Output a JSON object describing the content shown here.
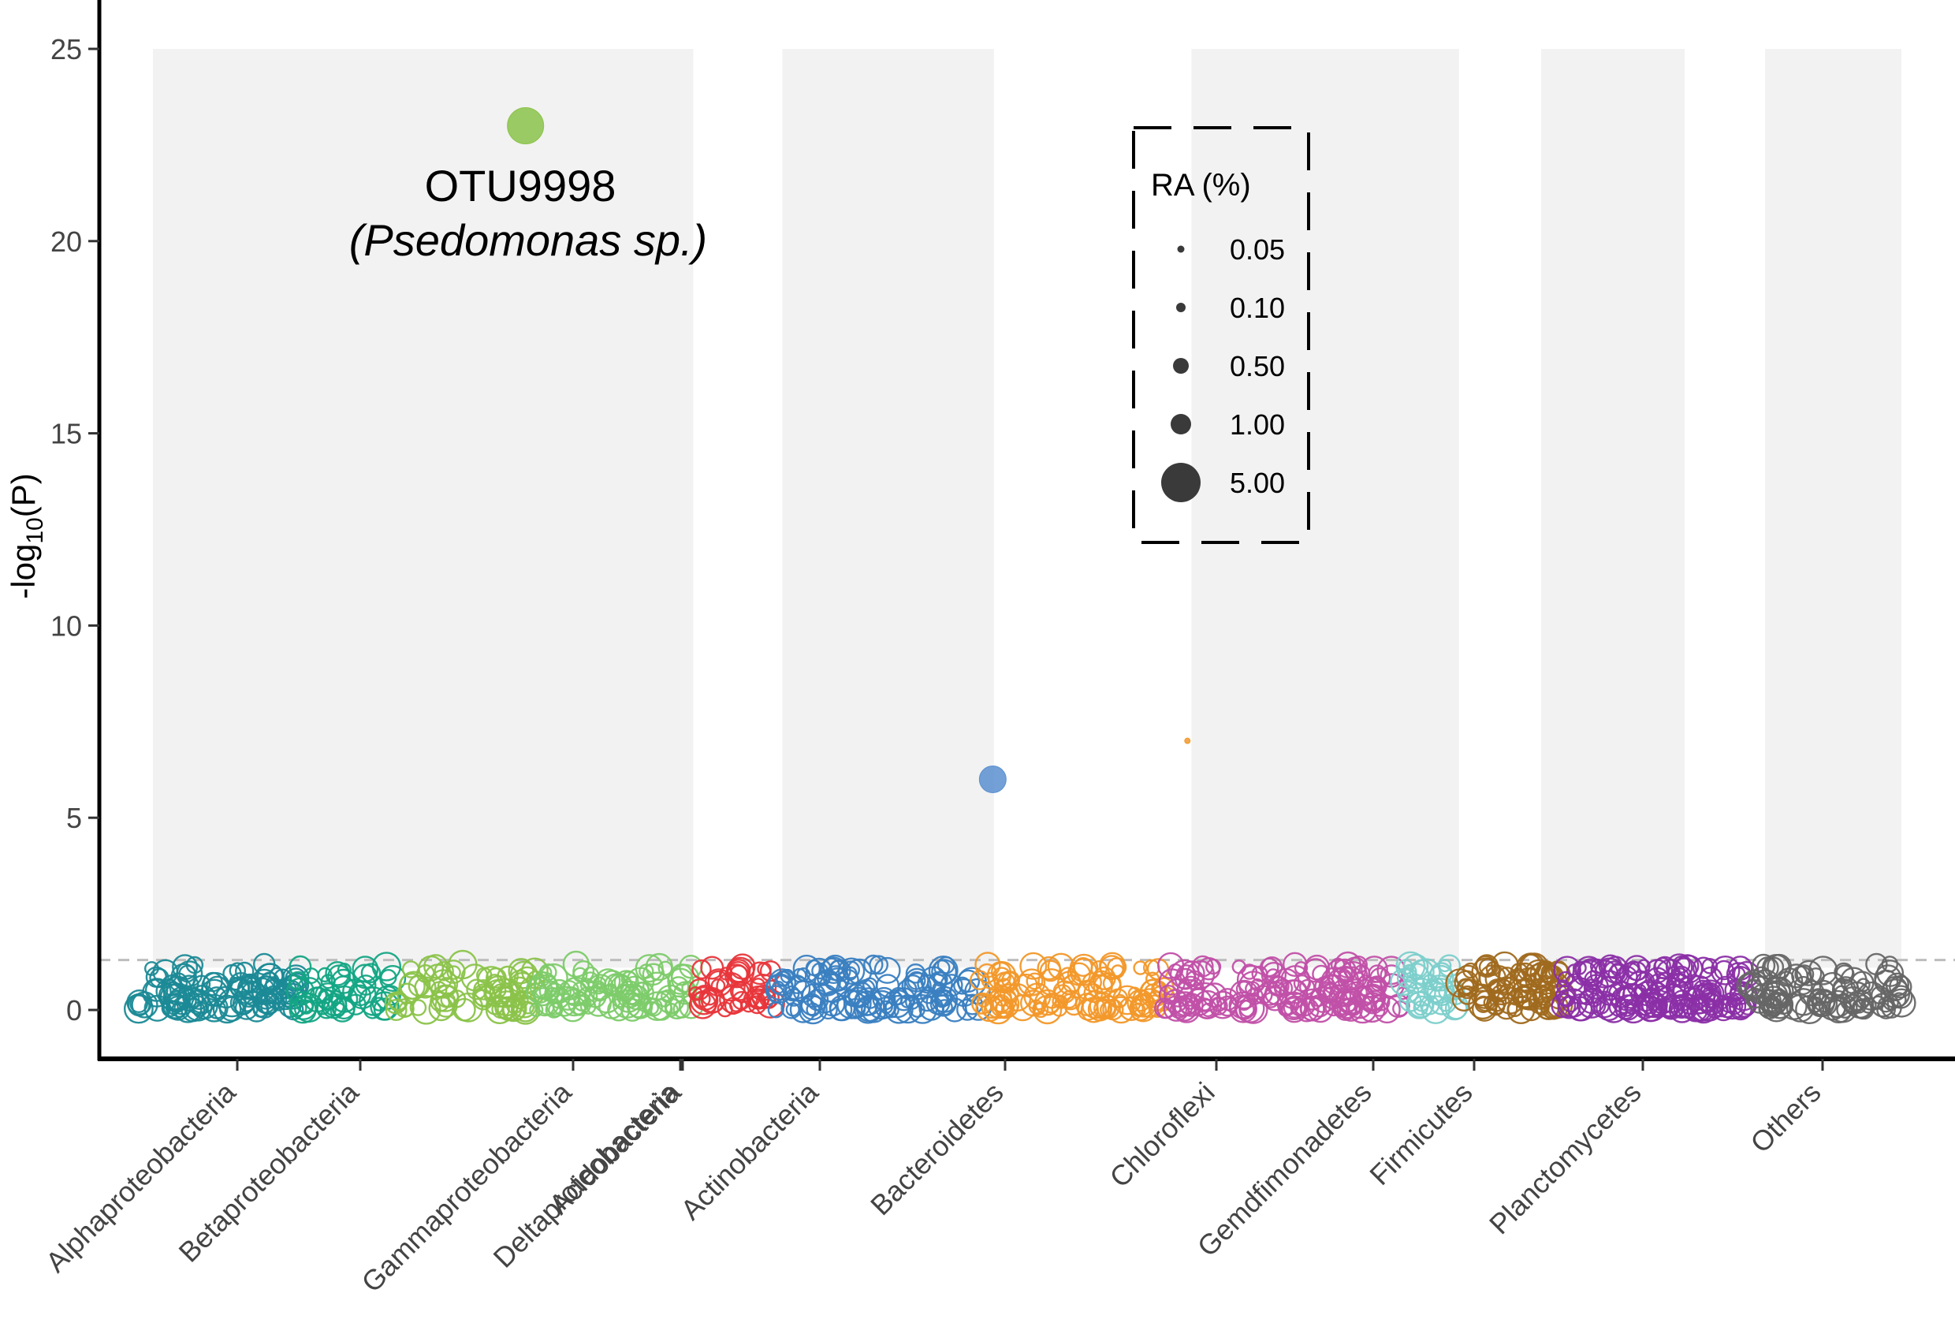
{
  "chart_data": {
    "type": "scatter",
    "title": "",
    "xlabel": "",
    "ylabel": "-log10(P)",
    "ylabel_parts": {
      "prefix": "-log",
      "subscript": "10",
      "suffix": "(P)"
    },
    "ylim": [
      -1.2,
      25.8
    ],
    "yticks": [
      0,
      5,
      10,
      15,
      20,
      25
    ],
    "threshold": 1.3,
    "categories": [
      "Alphaproteobacteria",
      "Betaproteobacteria",
      "Gammaproteobacteria",
      "Deltaproteobacteria",
      "Acidobacteria",
      "Actinobacteria",
      "Bacteroidetes",
      "Chloroflexi",
      "Gemdfimonadetes",
      "Firmicutes",
      "Planctomycetes",
      "Others"
    ],
    "groups": [
      {
        "name": "Alphaproteobacteria",
        "color": "#1b8a96",
        "count": 110,
        "range": [
          0.0,
          0.09
        ]
      },
      {
        "name": "Betaproteobacteria",
        "color": "#13a584",
        "count": 50,
        "range": [
          0.09,
          0.145
        ]
      },
      {
        "name": "Gammaproteobacteria",
        "color": "#8bc34a",
        "count": 75,
        "range": [
          0.145,
          0.225
        ]
      },
      {
        "name": "Deltaproteobacteria",
        "color": "#7dcb6a",
        "count": 95,
        "range": [
          0.225,
          0.315
        ]
      },
      {
        "name": "Acidobacteria",
        "color": "#e8363b",
        "count": 45,
        "range": [
          0.315,
          0.36
        ]
      },
      {
        "name": "Actinobacteria",
        "color": "#3a7fc1",
        "count": 120,
        "range": [
          0.36,
          0.475
        ]
      },
      {
        "name": "Bacteroidetes",
        "color": "#f2982a",
        "count": 110,
        "range": [
          0.475,
          0.58
        ]
      },
      {
        "name": "Chloroflexi",
        "color": "#c150a8",
        "count": 160,
        "range": [
          0.58,
          0.715
        ]
      },
      {
        "name": "Gemdfimonadetes",
        "color": "#7ccfcb",
        "count": 35,
        "range": [
          0.715,
          0.745
        ]
      },
      {
        "name": "Firmicutes",
        "color": "#a06a1f",
        "count": 85,
        "range": [
          0.745,
          0.805
        ]
      },
      {
        "name": "Planctomycetes",
        "color": "#8b2fa6",
        "count": 160,
        "range": [
          0.805,
          0.91
        ]
      },
      {
        "name": "Others",
        "color": "#666666",
        "count": 100,
        "range": [
          0.91,
          1.0
        ]
      }
    ],
    "bands": [
      {
        "from": 0.0,
        "to": 0.309
      },
      {
        "from": 0.36,
        "to": 0.481
      },
      {
        "from": 0.594,
        "to": 0.747
      },
      {
        "from": 0.794,
        "to": 0.876
      },
      {
        "from": 0.922,
        "to": 1.0
      }
    ],
    "tick_positions": [
      0.054,
      0.132,
      0.262,
      0.334,
      0.386,
      0.418,
      0.508,
      0.611,
      0.773,
      0.837,
      0.939,
      0.0
    ],
    "highlights": [
      {
        "id": "OTU9998",
        "group": "Gammaproteobacteria",
        "xpos": 0.219,
        "y": 23.0,
        "ra": 5.0,
        "color": "#8bc34a"
      },
      {
        "id": "",
        "group": "Actinobacteria",
        "xpos": 0.483,
        "y": 6.0,
        "ra": 1.8,
        "color": "#5b8fd0"
      },
      {
        "id": "",
        "group": "Bacteroidetes",
        "xpos": 0.593,
        "y": 7.0,
        "ra": 0.05,
        "color": "#f2982a"
      }
    ],
    "annotation": {
      "label": "OTU9998",
      "taxon": "(Psedomonas sp.)"
    },
    "legend": {
      "title": "RA (%)",
      "placement": "top-right",
      "entries": [
        {
          "label": "0.05",
          "value": 0.05
        },
        {
          "label": "0.10",
          "value": 0.1
        },
        {
          "label": "0.50",
          "value": 0.5
        },
        {
          "label": "1.00",
          "value": 1.0
        },
        {
          "label": "5.00",
          "value": 5.0
        }
      ]
    }
  }
}
